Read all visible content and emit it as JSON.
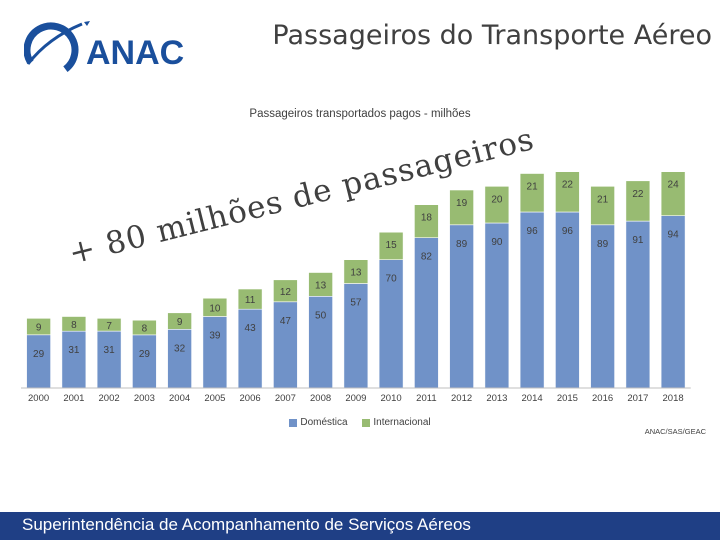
{
  "header": {
    "logo_text": "ANAC",
    "title": "Passageiros do Transporte Aéreo"
  },
  "annotation": {
    "text": "+ 80 milhões de passageiros"
  },
  "source": "ANAC/SAS/GEAC",
  "footer": {
    "text": "Superintendência de Acompanhamento de Serviços Aéreos"
  },
  "colors": {
    "domestic": "#7092c8",
    "international": "#98bb72",
    "footer_bg": "#1f3f85",
    "text": "#404040",
    "logo_blue": "#1a4f9c"
  },
  "chart_data": {
    "type": "bar",
    "stacked": true,
    "title": "Passageiros transportados pagos - milhões",
    "categories": [
      "2000",
      "2001",
      "2002",
      "2003",
      "2004",
      "2005",
      "2006",
      "2007",
      "2008",
      "2009",
      "2010",
      "2011",
      "2012",
      "2013",
      "2014",
      "2015",
      "2016",
      "2017",
      "2018"
    ],
    "series": [
      {
        "name": "Doméstica",
        "values": [
          29,
          31,
          31,
          29,
          32,
          39,
          43,
          47,
          50,
          57,
          70,
          82,
          89,
          90,
          96,
          96,
          89,
          91,
          94
        ]
      },
      {
        "name": "Internacional",
        "values": [
          9,
          8,
          7,
          8,
          9,
          10,
          11,
          12,
          13,
          13,
          15,
          18,
          19,
          20,
          21,
          22,
          21,
          22,
          24
        ]
      }
    ],
    "legend_position": "bottom",
    "grid": false,
    "ylim": [
      0,
      120
    ],
    "xlabel": "",
    "ylabel": ""
  }
}
